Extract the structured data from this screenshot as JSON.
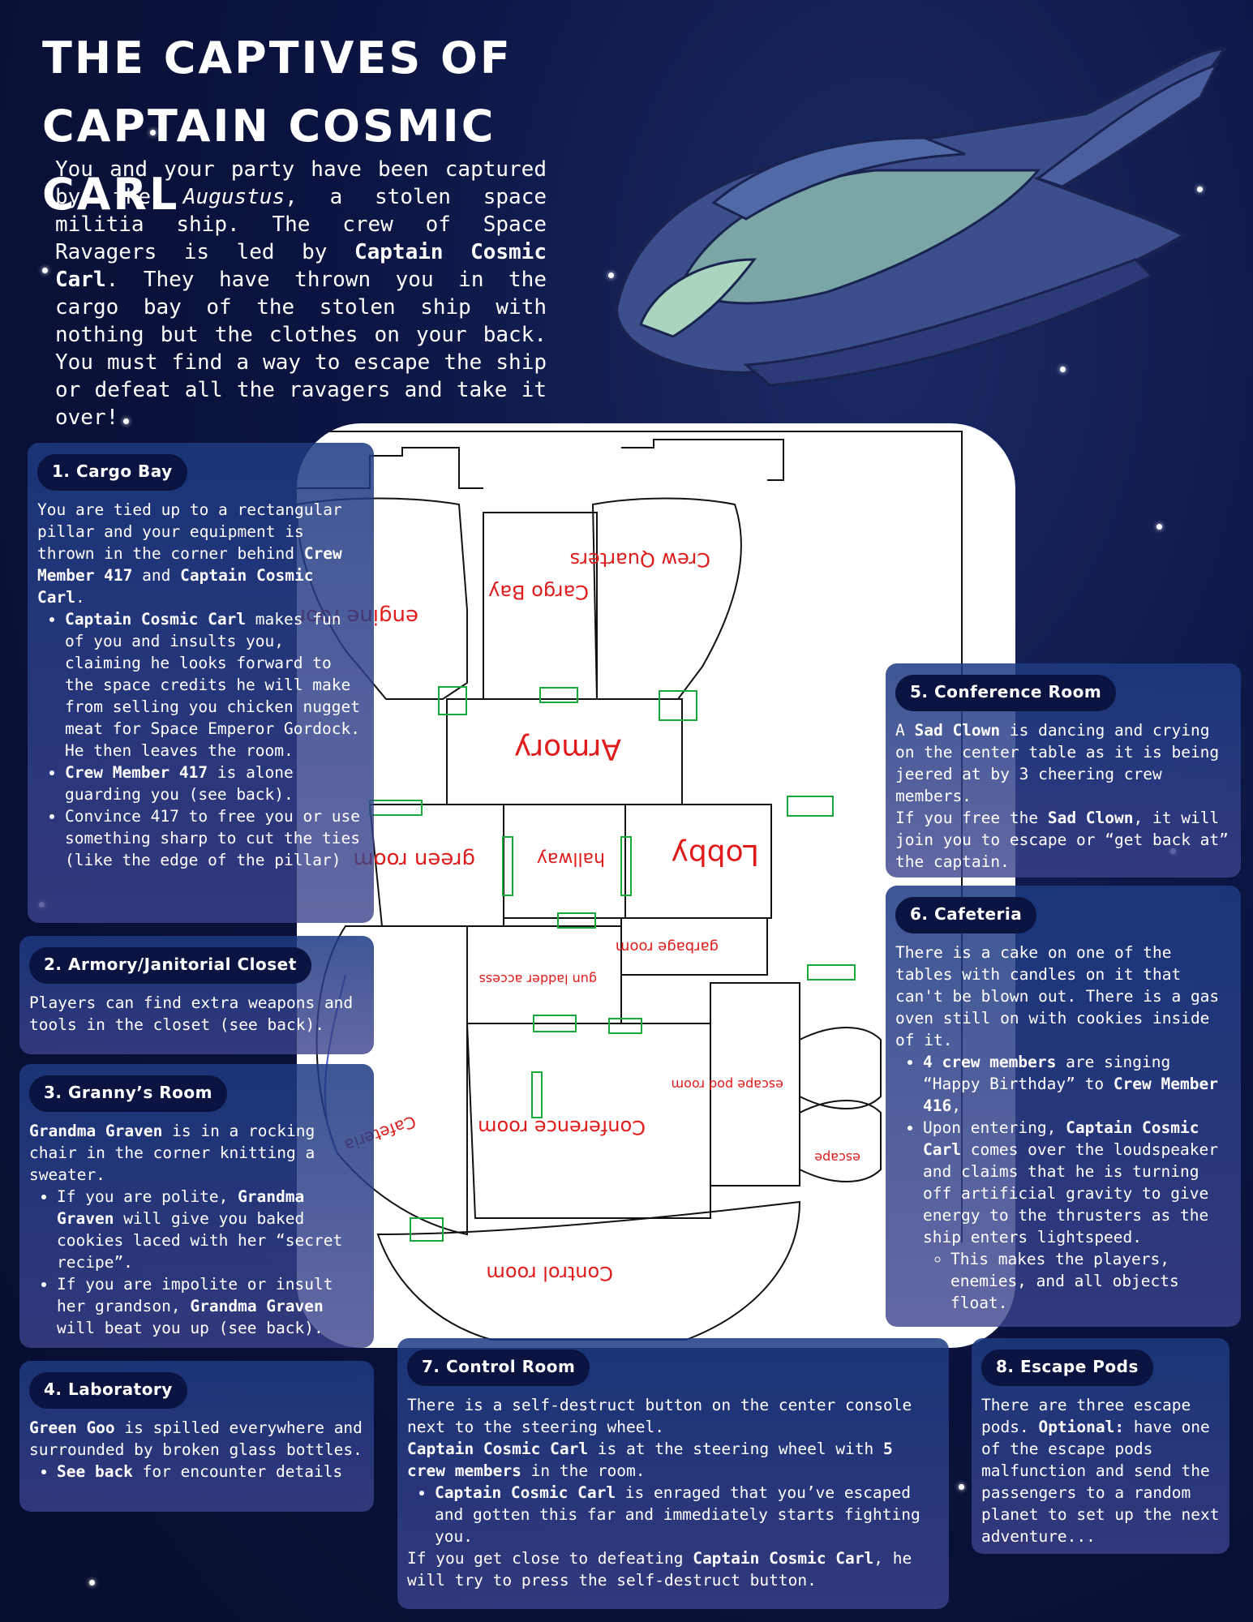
{
  "title": {
    "line1": "THE CAPTIVES OF",
    "line2": "CAPTAIN COSMIC CARL"
  },
  "intro": {
    "p1": "You and your party have been captured by the ",
    "ship_name": "Augustus",
    "p2": ", a stolen space militia ship. The crew of Space Ravagers is led by ",
    "captain": "Captain Cosmic Carl",
    "p3": ". They have thrown you in the cargo bay of the stolen ship with nothing but the clothes on your back. You must find a way to escape the ship or defeat all the ravagers and take it over!"
  },
  "map": {
    "labels": {
      "engine": "engine room",
      "cargo": "Cargo Bay",
      "crew": "Crew Quarters",
      "armory": "Armory",
      "green": "green room",
      "hallway": "hallway",
      "lobby": "Lobby",
      "garbage": "garbage room",
      "gun": "gun ladder access",
      "conference": "Conference room",
      "cafeteria": "Cafeteria",
      "escape": "escape pod room",
      "escape2": "escape",
      "control": "Control room"
    }
  },
  "cards": {
    "cargo": {
      "title": "1. Cargo Bay",
      "t1": "You are tied up to a rectangular pillar and your equipment is thrown in the corner behind ",
      "b1": "Crew Member 417",
      "t2": " and ",
      "b2": "Captain Cosmic Carl",
      "t3": ".",
      "li1_b": "Captain Cosmic Carl",
      "li1_t": " makes fun of you and insults you, claiming he looks forward to the space credits he will make from selling you chicken nugget meat for Space Emperor Gordock. He then leaves the room.",
      "li2_b": "Crew Member 417",
      "li2_t": " is alone guarding you (see back).",
      "li3_t": "Convince 417 to free you or use something sharp to cut the ties (like the edge of the pillar)"
    },
    "armory": {
      "title": "2. Armory/Janitorial Closet",
      "t1": "Players can find extra weapons and tools in the closet (see back)."
    },
    "granny": {
      "title": "3. Granny’s Room",
      "b1": "Grandma Graven",
      "t1": " is in a rocking chair in the corner knitting a sweater.",
      "li1_t1": "If you are polite, ",
      "li1_b": "Grandma Graven",
      "li1_t2": " will give you baked cookies laced with her “secret recipe”.",
      "li2_t1": "If you are impolite or insult her grandson, ",
      "li2_b": "Grandma Graven",
      "li2_t2": " will beat you up (see back)."
    },
    "lab": {
      "title": "4. Laboratory",
      "b1": "Green Goo",
      "t1": " is spilled everywhere and surrounded by broken glass bottles.",
      "li1_b": "See back",
      "li1_t": " for encounter details"
    },
    "conference": {
      "title": "5. Conference Room",
      "t1": "A ",
      "b1": "Sad Clown",
      "t2": " is dancing and crying on the center table as it is being jeered at by 3 cheering crew members.",
      "t3": "If you free the ",
      "b2": "Sad Clown",
      "t4": ", it will join you to escape or “get back at” the captain."
    },
    "cafeteria": {
      "title": "6. Cafeteria",
      "t1": "There is a cake on one of the tables with candles on it that can't be blown out. There is a gas oven still on with cookies inside of it.",
      "li1_b1": "4 crew members",
      "li1_t1": " are singing “Happy Birthday” to ",
      "li1_b2": "Crew Member 416",
      "li1_t2": ",",
      "li2_t1": "Upon entering, ",
      "li2_b": "Captain Cosmic Carl",
      "li2_t2": " comes over the loudspeaker and claims that he is turning off artificial gravity to give energy to the thrusters as the ship enters lightspeed.",
      "li3_t": "This makes the players, enemies, and all objects float."
    },
    "control": {
      "title": "7. Control Room",
      "t1": "There is a self-destruct button on the center console next to the steering wheel.",
      "b1": "Captain Cosmic Carl",
      "t2": " is at the steering wheel with ",
      "b2": "5 crew members",
      "t3": " in the room.",
      "li1_b": "Captain Cosmic Carl",
      "li1_t": " is enraged that you’ve escaped and gotten this far and immediately starts fighting you.",
      "t4": "If you get close to defeating ",
      "b3": "Captain Cosmic Carl",
      "t5": ", he will try to press the self-destruct button."
    },
    "escape": {
      "title": "8. Escape Pods",
      "t1": "There are three escape pods. ",
      "b1": "Optional:",
      "t2": " have one of the escape pods malfunction and send the passengers to a random planet to set up the next adventure..."
    }
  }
}
